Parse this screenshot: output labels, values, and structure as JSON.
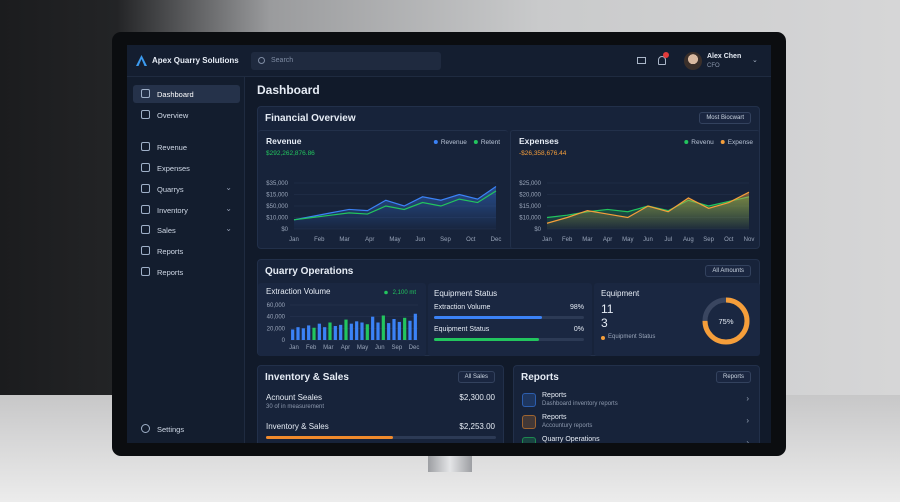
{
  "app": {
    "name": "Apex Quarry Solutions",
    "search": "Search",
    "user": {
      "name": "Alex Chen",
      "role": "CFO"
    }
  },
  "sidebar": {
    "items": [
      "Dashboard",
      "Overview",
      "Revenue",
      "Expenses",
      "Quarrys",
      "Inventory",
      "Sales",
      "Reports",
      "Reports"
    ],
    "settings": "Settings"
  },
  "page_title": "Dashboard",
  "financial": {
    "title": "Financial Overview",
    "dropdown": "Most Biocwart",
    "revenue": {
      "type": "line",
      "title": "Revenue",
      "amount": "$292,262,876.86",
      "categories": [
        "Jan",
        "Feb",
        "Mar",
        "Apr",
        "May",
        "Jun",
        "Sep",
        "Oct",
        "Dec"
      ],
      "x": [
        "Jan",
        "Feb",
        "Mar",
        "Apr",
        "May",
        "Jun",
        "Jul",
        "Aug",
        "Sep",
        "Oct",
        "Nov",
        "Dec"
      ],
      "ylim": [
        0,
        4
      ],
      "yticks": [
        {
          "value": 0,
          "label": "$0"
        },
        {
          "value": 1,
          "label": "$10,000"
        },
        {
          "value": 2,
          "label": "$50,000"
        },
        {
          "value": 3,
          "label": "$15,000"
        },
        {
          "value": 4,
          "label": "$35,000"
        }
      ],
      "series": [
        {
          "name": "Revenue",
          "color": "#3b82f6",
          "values": [
            0.8,
            1.1,
            1.4,
            1.7,
            1.6,
            2.5,
            2.0,
            2.8,
            2.5,
            3.0,
            2.6,
            3.7
          ]
        },
        {
          "name": "Retent",
          "color": "#22c55e",
          "values": [
            0.8,
            1.0,
            1.2,
            1.4,
            1.3,
            2.0,
            1.7,
            2.3,
            2.0,
            2.6,
            2.3,
            3.3
          ]
        }
      ]
    },
    "expenses": {
      "type": "line",
      "title": "Expenses",
      "amount": "-$26,358,676.44",
      "categories": [
        "Jan",
        "Feb",
        "Mar",
        "Apr",
        "May",
        "Jun",
        "Jul",
        "Aug",
        "Sep",
        "Oct",
        "Nov"
      ],
      "x": [
        "Jan",
        "Feb",
        "Mar",
        "Apr",
        "May",
        "Jun",
        "Jul",
        "Aug",
        "Sep",
        "Oct",
        "Nov"
      ],
      "ylim": [
        0,
        4
      ],
      "yticks": [
        {
          "value": 0,
          "label": "$0"
        },
        {
          "value": 1,
          "label": "$10,000"
        },
        {
          "value": 2,
          "label": "$15,000"
        },
        {
          "value": 3,
          "label": "$20,000"
        },
        {
          "value": 4,
          "label": "$25,000"
        }
      ],
      "series": [
        {
          "name": "Revenu",
          "color": "#22c55e",
          "values": [
            1.0,
            1.2,
            1.5,
            1.7,
            1.5,
            2.0,
            1.6,
            2.5,
            2.0,
            2.4,
            2.8
          ]
        },
        {
          "name": "Expense",
          "color": "#f59e3a",
          "values": [
            0.5,
            1.0,
            1.6,
            1.3,
            1.0,
            2.0,
            1.5,
            2.7,
            1.8,
            2.3,
            3.2
          ]
        }
      ]
    }
  },
  "quarry": {
    "title": "Quarry Operations",
    "dropdown": "All Amounts",
    "extraction": {
      "type": "bar",
      "title": "Extraction Volume",
      "legend": "2,100 mt",
      "legend_color": "#22c55e",
      "categories": [
        "Jan",
        "Feb",
        "Mar",
        "Apr",
        "May",
        "Jun",
        "Sep",
        "Dec"
      ],
      "ylim": [
        0,
        60000
      ],
      "yticks": [
        0,
        {
          "value": 20000,
          "label": "20,000"
        },
        {
          "value": 40000,
          "label": "40,000"
        },
        {
          "value": 60000,
          "label": "60,000"
        }
      ],
      "values": [
        18000,
        22000,
        20000,
        25000,
        21000,
        28000,
        22000,
        30000,
        24000,
        26000,
        35000,
        28000,
        32000,
        30000,
        27000,
        40000,
        30000,
        42000,
        29000,
        36000,
        31000,
        38000,
        33000,
        45000
      ],
      "colors": [
        "#3b82f6",
        "#3b82f6",
        "#3b82f6",
        "#3b82f6",
        "#22c55e",
        "#3b82f6",
        "#3b82f6",
        "#22c55e",
        "#3b82f6",
        "#3b82f6",
        "#22c55e",
        "#3b82f6",
        "#3b82f6",
        "#3b82f6",
        "#22c55e",
        "#3b82f6",
        "#3b82f6",
        "#22c55e",
        "#3b82f6",
        "#3b82f6",
        "#3b82f6",
        "#22c55e",
        "#3b82f6",
        "#3b82f6"
      ]
    },
    "status": {
      "title": "Equipment Status",
      "items": [
        {
          "label": "Extraction Volume",
          "value_label": "98%",
          "progress": 72,
          "color": "#3b82f6"
        },
        {
          "label": "Equipment Status",
          "value_label": "0%",
          "progress": 70,
          "color": "#22c55e"
        }
      ]
    },
    "equipment": {
      "title": "Equipment",
      "count1": 11,
      "count2": 3,
      "legend": "Equipment Status",
      "gauge": {
        "value": 75,
        "value_label": "75%",
        "color": "#f59e3a"
      }
    }
  },
  "inventory": {
    "title": "Inventory & Sales",
    "dropdown": "All Sales",
    "rows": [
      {
        "label": "Acnount Seales",
        "sub": "30 of in measurement",
        "amount": "$2,300.00"
      },
      {
        "label": "Inventory & Sales",
        "amount": "$2,253.00",
        "progress": 55,
        "color": "#f08a2c"
      }
    ]
  },
  "reports": {
    "title": "Reports",
    "dropdown": "Reports",
    "items": [
      {
        "title": "Reports",
        "sub": "Dashboard inventory reports"
      },
      {
        "title": "Reports",
        "sub": "Accountury reports"
      },
      {
        "title": "Quarry Operations"
      }
    ]
  }
}
